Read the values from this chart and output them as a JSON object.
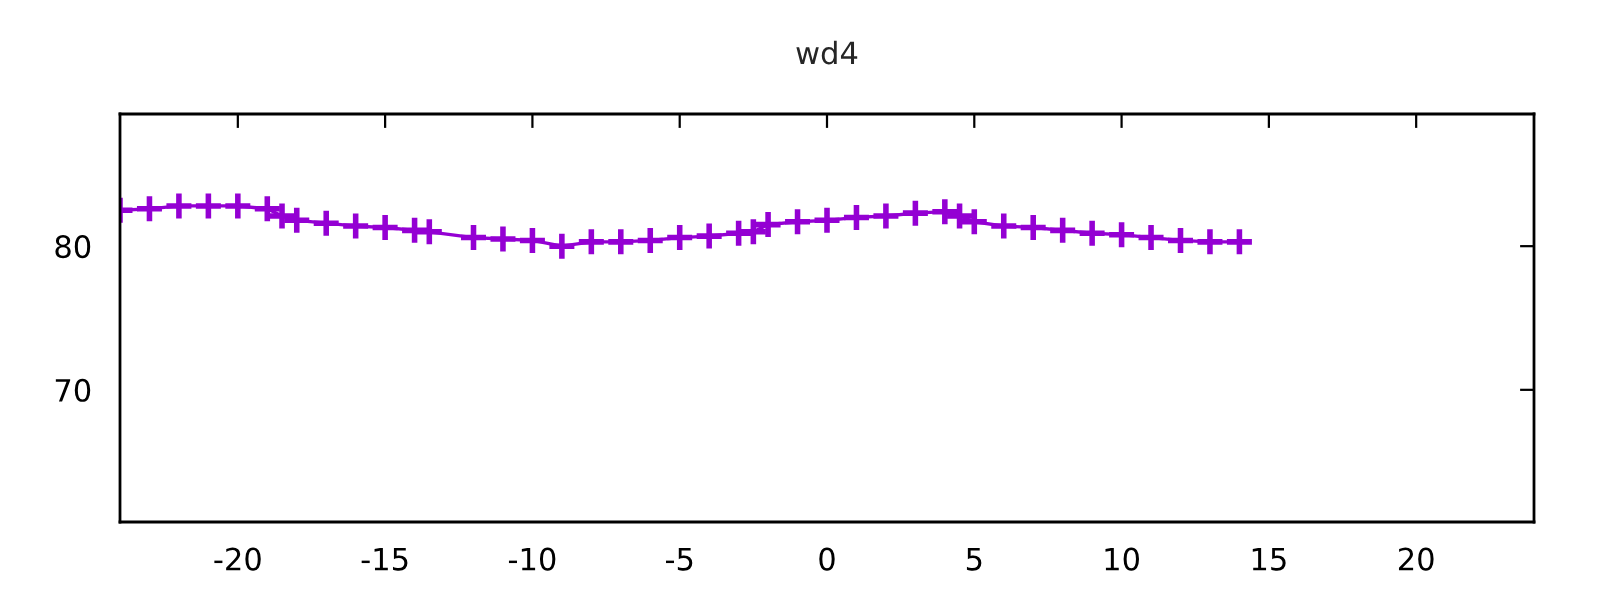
{
  "chart_data": {
    "type": "line",
    "title": "wd4",
    "x": [
      -24,
      -23,
      -22,
      -21,
      -20,
      -19,
      -18.5,
      -18,
      -17,
      -16,
      -15,
      -14,
      -13.5,
      -12,
      -11,
      -10,
      -9,
      -8,
      -7,
      -6,
      -5,
      -4,
      -3,
      -2.5,
      -2,
      -1,
      0,
      1,
      2,
      3,
      4,
      4.5,
      5,
      6,
      7,
      8,
      9,
      10,
      11,
      12,
      13,
      14
    ],
    "series": [
      {
        "color": "#9400d3",
        "values": [
          82.5,
          82.6,
          82.8,
          82.8,
          82.8,
          82.6,
          82.1,
          81.8,
          81.6,
          81.4,
          81.3,
          81.1,
          81.0,
          80.6,
          80.5,
          80.4,
          80.0,
          80.3,
          80.3,
          80.4,
          80.6,
          80.7,
          80.9,
          81.0,
          81.5,
          81.7,
          81.8,
          82.0,
          82.1,
          82.3,
          82.4,
          82.1,
          81.7,
          81.4,
          81.3,
          81.1,
          80.9,
          80.8,
          80.6,
          80.4,
          80.3,
          80.3
        ]
      }
    ],
    "xlim": [
      -24,
      24
    ],
    "ylim": [
      60.8,
      89.2
    ],
    "xticks": [
      -20,
      -15,
      -10,
      -5,
      0,
      5,
      10,
      15,
      20
    ],
    "yticks": [
      70,
      80
    ],
    "marker": "cross",
    "line_style": "solid"
  }
}
